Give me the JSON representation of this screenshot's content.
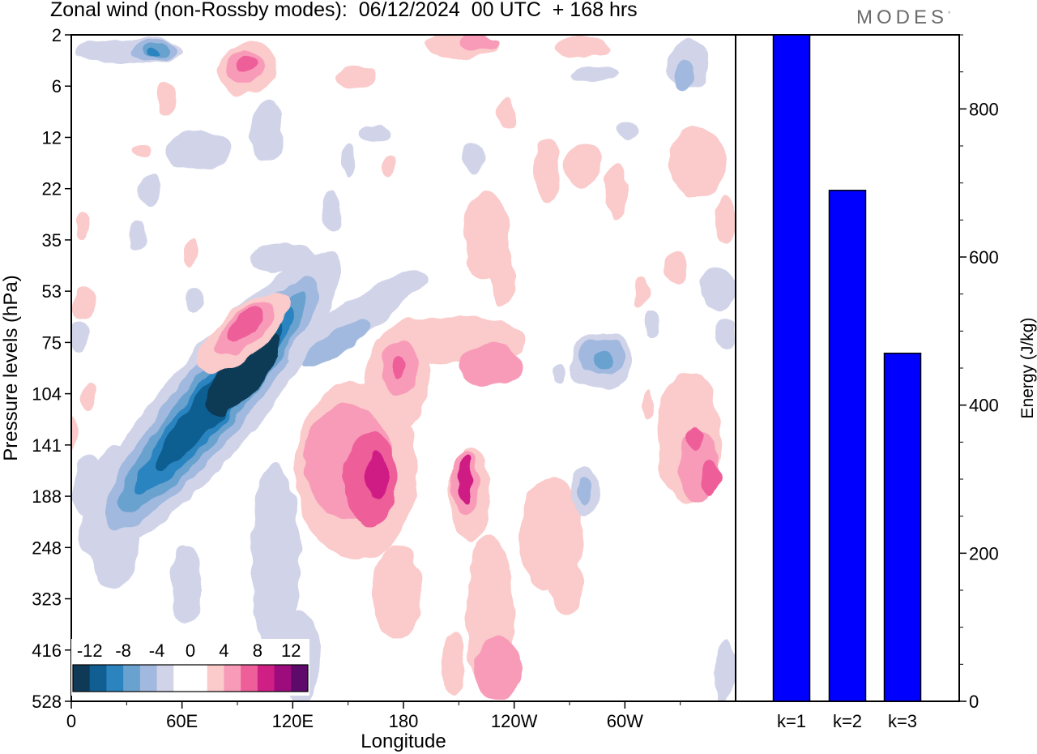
{
  "header": {
    "title": "Zonal wind (non-Rossby modes):  06/12/2024  00 UTC  + 168 hrs",
    "logo_text": "MODES",
    "logo_mark": "°"
  },
  "chart_data": [
    {
      "type": "heatmap",
      "title": "Zonal wind (non-Rossby modes):  06/12/2024  00 UTC  + 168 hrs",
      "xlabel": "Longitude",
      "ylabel": "Pressure levels (hPa)",
      "x_tick_labels": [
        "0",
        "60E",
        "120E",
        "180",
        "120W",
        "60W"
      ],
      "x_tick_values_deg_east": [
        0,
        60,
        120,
        180,
        240,
        300
      ],
      "xlim_deg_east": [
        0,
        360
      ],
      "y_tick_labels": [
        "2",
        "6",
        "12",
        "22",
        "35",
        "53",
        "75",
        "104",
        "141",
        "188",
        "248",
        "323",
        "416",
        "528"
      ],
      "y_levels_hpa": [
        2,
        6,
        12,
        22,
        35,
        53,
        75,
        104,
        141,
        188,
        248,
        323,
        416,
        528
      ],
      "color_scale": {
        "tick_labels": [
          "-12",
          "-8",
          "-4",
          "0",
          "4",
          "8",
          "12"
        ],
        "colors": [
          "#0e3a57",
          "#115f92",
          "#2c84bf",
          "#6aa2cf",
          "#a1b9de",
          "#d1d4e9",
          "#ffffff",
          "#ffffff",
          "#fbcaca",
          "#f89bb8",
          "#ee5f9a",
          "#cf1f85",
          "#9c0c7c",
          "#5d0a6a"
        ]
      },
      "features": [
        {
          "sign": "positive",
          "lon_deg_east": 97,
          "level_hpa": 4,
          "value": 8
        },
        {
          "sign": "negative",
          "lon_deg_east": 47,
          "level_hpa": 3,
          "value": -6
        },
        {
          "sign": "negative",
          "lon_deg_east": 100,
          "level_hpa": 110,
          "value": -12
        },
        {
          "sign": "negative",
          "lon_deg_east": 51,
          "level_hpa": 190,
          "value": -8
        },
        {
          "sign": "positive",
          "lon_deg_east": 96,
          "level_hpa": 70,
          "value": 6
        },
        {
          "sign": "positive",
          "lon_deg_east": 165,
          "level_hpa": 165,
          "value": 10
        },
        {
          "sign": "positive",
          "lon_deg_east": 192,
          "level_hpa": 85,
          "value": 6
        },
        {
          "sign": "positive",
          "lon_deg_east": 213,
          "level_hpa": 170,
          "value": 8
        },
        {
          "sign": "positive",
          "lon_deg_east": 348,
          "level_hpa": 170,
          "value": 8
        },
        {
          "sign": "positive",
          "lon_deg_east": 236,
          "level_hpa": 470,
          "value": 6
        },
        {
          "sign": "negative",
          "lon_deg_east": 283,
          "level_hpa": 90,
          "value": -6
        },
        {
          "sign": "negative",
          "lon_deg_east": 279,
          "level_hpa": 190,
          "value": -4
        },
        {
          "sign": "negative",
          "lon_deg_east": 328,
          "level_hpa": 6,
          "value": -4
        }
      ]
    },
    {
      "type": "bar",
      "categories": [
        "k=1",
        "k=2",
        "k=3"
      ],
      "values": [
        900,
        690,
        470
      ],
      "ylabel": "Energy (J/kg)",
      "ylim": [
        0,
        900
      ],
      "y_ticks": [
        0,
        200,
        400,
        600,
        800
      ],
      "bar_color": "#0000ff"
    }
  ]
}
